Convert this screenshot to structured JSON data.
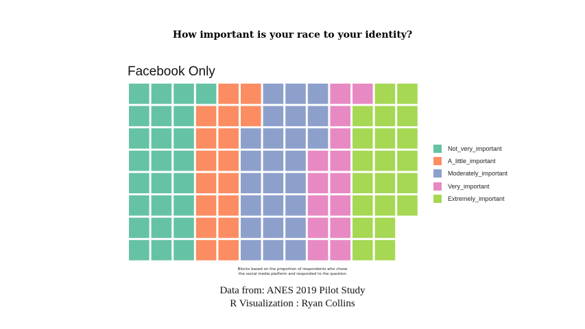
{
  "title": "How important is your race to your identity?",
  "chart_data": {
    "type": "waffle",
    "title": "Facebook Only",
    "rows": 8,
    "series": [
      {
        "name": "Not_very_important",
        "blocks": 25,
        "color": "#66c2a5"
      },
      {
        "name": "A_little_important",
        "blocks": 17,
        "color": "#fc8d62"
      },
      {
        "name": "Moderately_important",
        "blocks": 25,
        "color": "#8da0cb"
      },
      {
        "name": "Very_important",
        "blocks": 14,
        "color": "#e78ac3"
      },
      {
        "name": "Extremely_important",
        "blocks": 21,
        "color": "#a6d854"
      }
    ],
    "legend_position": "right",
    "caption_lines": [
      "Blocks based on the proportion of respondents who chose",
      "the social media platform and responded to the question"
    ]
  },
  "source_lines": [
    "Data from: ANES 2019 Pilot Study",
    "R Visualization : Ryan Collins"
  ]
}
